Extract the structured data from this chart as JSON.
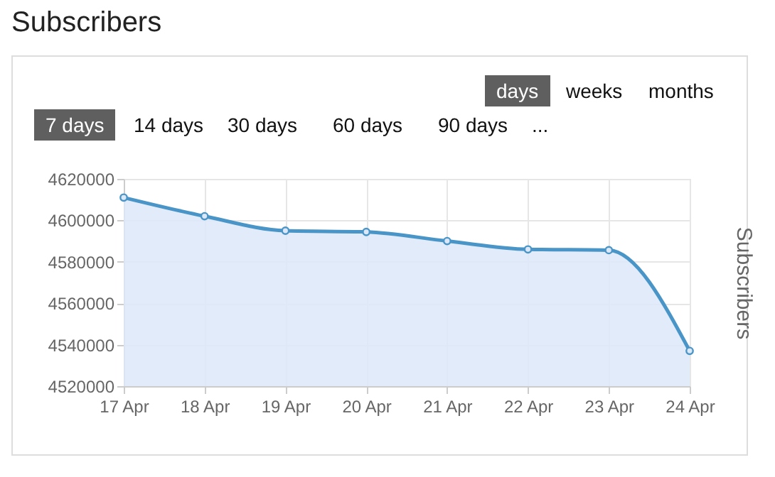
{
  "chart_data": {
    "type": "area",
    "title": "Subscribers",
    "ylabel": "Subscribers",
    "annotations": [
      "days",
      "weeks",
      "months",
      "7 days",
      "14 days",
      "30 days",
      "60 days",
      "90 days",
      "..."
    ],
    "categories": [
      "17 Apr",
      "18 Apr",
      "19 Apr",
      "20 Apr",
      "21 Apr",
      "22 Apr",
      "23 Apr",
      "24 Apr"
    ],
    "series": [
      {
        "color": "#4a95c8",
        "values": [
          4611000,
          4602000,
          4595000,
          4594400,
          4590000,
          4586000,
          4585600,
          4537000
        ]
      }
    ],
    "ylim": [
      4520000,
      4620000
    ],
    "yticks": [
      4520000,
      4540000,
      4560000,
      4580000,
      4600000,
      4620000
    ],
    "grid": true,
    "marker": "circle",
    "line_style": "solid"
  }
}
